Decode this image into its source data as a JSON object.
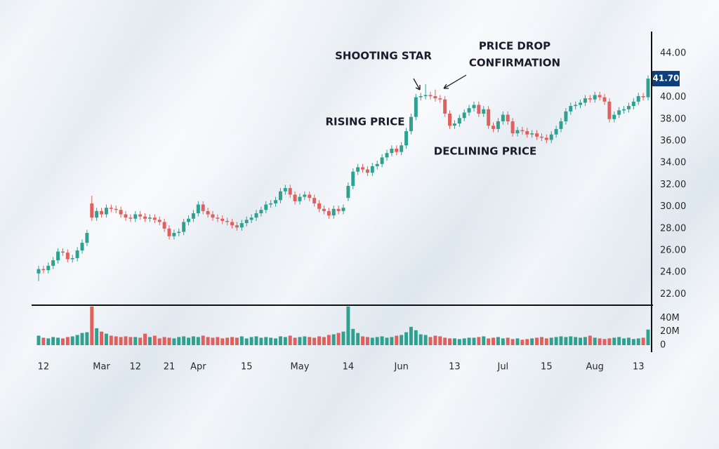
{
  "chart_data": {
    "type": "candlestick",
    "annotations": [
      "SHOOTING STAR",
      "PRICE DROP",
      "CONFIRMATION",
      "RISING PRICE",
      "DECLINING PRICE"
    ],
    "up_color": "#2fa190",
    "down_color": "#e0605e",
    "categories": [
      null,
      "12",
      null,
      null,
      null,
      null,
      null,
      null,
      null,
      null,
      null,
      null,
      null,
      "Mar",
      null,
      null,
      null,
      null,
      null,
      null,
      "12",
      null,
      null,
      null,
      null,
      null,
      null,
      "21",
      null,
      null,
      null,
      null,
      null,
      "Apr",
      null,
      null,
      null,
      null,
      null,
      null,
      null,
      null,
      null,
      "15",
      null,
      null,
      null,
      null,
      null,
      null,
      null,
      null,
      null,
      null,
      "May",
      null,
      null,
      null,
      null,
      null,
      null,
      null,
      null,
      null,
      "14",
      null,
      null,
      null,
      null,
      null,
      null,
      null,
      null,
      null,
      null,
      "Jun",
      null,
      null,
      null,
      null,
      null,
      null,
      null,
      null,
      null,
      null,
      "13",
      null,
      null,
      null,
      null,
      null,
      null,
      null,
      null,
      null,
      "Jul",
      null,
      null,
      null,
      null,
      null,
      null,
      null,
      null,
      "15",
      null,
      null,
      null,
      null,
      null,
      null,
      null,
      null,
      null,
      "Aug",
      null,
      null,
      null,
      null,
      null,
      null,
      null,
      null,
      "13",
      null,
      null
    ],
    "open": [
      23.9,
      24.3,
      24.2,
      24.6,
      25.1,
      25.9,
      25.8,
      25.2,
      25.3,
      26.0,
      26.7,
      30.3,
      29.0,
      29.6,
      29.3,
      29.9,
      29.8,
      29.7,
      29.3,
      29.0,
      28.9,
      29.3,
      29.1,
      28.9,
      29.0,
      28.8,
      28.6,
      28.0,
      27.3,
      27.6,
      27.7,
      28.6,
      28.9,
      29.4,
      30.2,
      29.6,
      29.3,
      29.0,
      28.9,
      28.7,
      28.6,
      28.3,
      28.1,
      28.5,
      28.8,
      29.0,
      29.4,
      29.7,
      30.2,
      30.3,
      30.6,
      31.4,
      31.7,
      31.1,
      30.5,
      30.9,
      31.1,
      30.8,
      30.3,
      29.8,
      29.6,
      29.2,
      29.8,
      29.6,
      30.8,
      31.9,
      33.2,
      33.6,
      33.4,
      33.1,
      33.7,
      33.9,
      34.5,
      34.9,
      35.3,
      35.0,
      35.6,
      36.9,
      38.2,
      40.0,
      40.1,
      40.2,
      40.1,
      39.9,
      39.8,
      38.5,
      37.4,
      37.6,
      38.1,
      38.6,
      39.0,
      39.3,
      38.5,
      38.9,
      37.4,
      37.1,
      37.8,
      38.4,
      37.8,
      36.7,
      37.0,
      36.9,
      36.6,
      36.7,
      36.4,
      36.3,
      36.1,
      36.6,
      37.1,
      37.8,
      38.7,
      39.2,
      39.3,
      39.5,
      39.9,
      39.8,
      40.2,
      40.0,
      39.6,
      38.0,
      38.4,
      38.8,
      38.9,
      39.2,
      39.6,
      40.1,
      40.0
    ],
    "high": [
      24.6,
      24.6,
      24.9,
      25.4,
      26.2,
      26.2,
      26.1,
      25.6,
      26.3,
      27.0,
      27.9,
      31.0,
      29.9,
      29.9,
      30.2,
      30.2,
      30.1,
      30.0,
      29.6,
      29.3,
      29.6,
      29.6,
      29.4,
      29.3,
      29.3,
      29.1,
      28.9,
      28.3,
      27.9,
      28.0,
      28.9,
      29.2,
      29.7,
      30.5,
      30.5,
      29.9,
      29.6,
      29.3,
      29.2,
      29.0,
      28.9,
      28.6,
      28.8,
      29.1,
      29.3,
      29.7,
      30.0,
      30.5,
      30.6,
      30.9,
      31.7,
      32.0,
      32.0,
      31.4,
      31.2,
      31.4,
      31.4,
      31.1,
      30.6,
      30.1,
      29.9,
      30.1,
      30.1,
      30.2,
      32.2,
      33.5,
      33.9,
      33.9,
      33.7,
      34.0,
      34.2,
      34.8,
      35.2,
      35.6,
      35.6,
      35.9,
      37.2,
      38.5,
      40.3,
      40.4,
      41.2,
      40.5,
      40.7,
      40.2,
      40.1,
      38.8,
      37.9,
      38.4,
      38.9,
      39.3,
      39.6,
      39.6,
      39.2,
      39.2,
      37.7,
      38.1,
      38.7,
      38.7,
      38.1,
      37.3,
      37.3,
      37.2,
      37.0,
      37.0,
      36.7,
      36.6,
      36.9,
      37.4,
      38.1,
      39.0,
      39.5,
      39.6,
      39.8,
      40.2,
      40.2,
      40.5,
      40.5,
      40.3,
      39.9,
      38.7,
      39.1,
      39.2,
      39.5,
      39.9,
      40.4,
      40.4,
      42.0
    ],
    "low": [
      23.2,
      23.9,
      23.9,
      24.3,
      24.8,
      25.5,
      24.9,
      24.9,
      25.0,
      25.7,
      26.4,
      28.7,
      28.7,
      29.0,
      29.0,
      29.5,
      29.4,
      29.0,
      28.7,
      28.6,
      28.6,
      28.8,
      28.6,
      28.6,
      28.5,
      28.3,
      27.7,
      27.0,
      27.0,
      27.3,
      27.4,
      28.3,
      28.6,
      29.1,
      29.3,
      29.0,
      28.7,
      28.6,
      28.4,
      28.3,
      28.0,
      27.8,
      27.8,
      28.2,
      28.5,
      28.7,
      29.1,
      29.4,
      29.9,
      30.0,
      30.3,
      31.1,
      30.8,
      30.2,
      30.2,
      30.6,
      30.5,
      30.0,
      29.5,
      29.3,
      28.9,
      28.9,
      29.3,
      29.3,
      30.5,
      31.6,
      32.9,
      33.1,
      32.8,
      32.8,
      33.4,
      33.6,
      34.2,
      34.6,
      34.7,
      34.7,
      35.3,
      36.6,
      37.9,
      39.7,
      39.8,
      39.8,
      39.6,
      39.5,
      38.2,
      37.1,
      37.1,
      37.3,
      37.8,
      38.3,
      38.7,
      38.2,
      38.2,
      37.1,
      36.8,
      36.8,
      37.5,
      37.5,
      36.4,
      36.4,
      36.6,
      36.3,
      36.3,
      36.1,
      36.0,
      35.8,
      35.8,
      36.3,
      36.8,
      37.5,
      38.4,
      38.9,
      39.0,
      39.2,
      39.5,
      39.5,
      39.7,
      39.3,
      37.7,
      37.7,
      38.1,
      38.5,
      38.6,
      38.9,
      39.3,
      39.7,
      39.7
    ],
    "close": [
      24.3,
      24.2,
      24.6,
      25.1,
      25.9,
      25.8,
      25.2,
      25.3,
      26.0,
      26.7,
      27.6,
      29.0,
      29.6,
      29.3,
      29.9,
      29.8,
      29.7,
      29.3,
      29.0,
      28.9,
      29.3,
      29.1,
      28.9,
      29.0,
      28.8,
      28.6,
      28.0,
      27.3,
      27.6,
      27.7,
      28.6,
      28.9,
      29.4,
      30.2,
      29.6,
      29.3,
      29.0,
      28.9,
      28.7,
      28.6,
      28.3,
      28.1,
      28.5,
      28.8,
      29.0,
      29.4,
      29.7,
      30.2,
      30.3,
      30.6,
      31.4,
      31.7,
      31.1,
      30.5,
      30.9,
      31.1,
      30.8,
      30.3,
      29.8,
      29.6,
      29.2,
      29.8,
      29.6,
      29.9,
      31.9,
      33.2,
      33.6,
      33.4,
      33.1,
      33.7,
      33.9,
      34.5,
      34.9,
      35.3,
      35.0,
      35.6,
      36.9,
      38.2,
      40.0,
      40.1,
      40.2,
      40.1,
      39.9,
      39.8,
      38.5,
      37.4,
      37.6,
      38.1,
      38.6,
      39.0,
      39.3,
      38.5,
      38.9,
      37.4,
      37.1,
      37.8,
      38.4,
      37.8,
      36.7,
      37.0,
      36.9,
      36.6,
      36.7,
      36.4,
      36.3,
      36.1,
      36.6,
      37.1,
      37.8,
      38.7,
      39.2,
      39.3,
      39.5,
      39.9,
      39.8,
      40.2,
      40.0,
      39.6,
      38.0,
      38.4,
      38.8,
      38.9,
      39.2,
      39.6,
      40.1,
      40.0,
      41.7
    ],
    "volume": [
      14000000,
      11000000,
      10000000,
      12000000,
      11000000,
      10000000,
      12000000,
      13000000,
      15000000,
      18000000,
      19000000,
      57000000,
      25000000,
      20000000,
      17000000,
      14000000,
      13000000,
      12000000,
      13000000,
      12000000,
      12000000,
      11000000,
      17000000,
      12000000,
      14000000,
      10000000,
      12000000,
      11000000,
      10000000,
      12000000,
      13000000,
      11000000,
      13000000,
      12000000,
      14000000,
      12000000,
      11000000,
      12000000,
      10000000,
      11000000,
      12000000,
      11000000,
      13000000,
      10000000,
      12000000,
      13000000,
      11000000,
      12000000,
      11000000,
      10000000,
      13000000,
      12000000,
      14000000,
      11000000,
      12000000,
      13000000,
      12000000,
      11000000,
      13000000,
      12000000,
      15000000,
      16000000,
      18000000,
      20000000,
      57000000,
      24000000,
      18000000,
      13000000,
      12000000,
      11000000,
      12000000,
      13000000,
      11000000,
      12000000,
      14000000,
      15000000,
      19000000,
      27000000,
      22000000,
      16000000,
      15000000,
      12000000,
      14000000,
      13000000,
      11000000,
      10000000,
      10000000,
      9000000,
      10000000,
      11000000,
      11000000,
      12000000,
      13000000,
      10000000,
      11000000,
      12000000,
      10000000,
      11000000,
      9000000,
      10000000,
      8000000,
      9000000,
      10000000,
      11000000,
      12000000,
      10000000,
      11000000,
      12000000,
      13000000,
      12000000,
      13000000,
      12000000,
      11000000,
      12000000,
      14000000,
      11000000,
      10000000,
      9000000,
      10000000,
      11000000,
      12000000,
      10000000,
      11000000,
      9000000,
      10000000,
      11000000,
      23000000
    ],
    "ylim": [
      21,
      46
    ],
    "yticks": [
      {
        "value": 44,
        "label": "44.00"
      },
      {
        "value": 40,
        "label": "40.00"
      },
      {
        "value": 38,
        "label": "38.00"
      },
      {
        "value": 36,
        "label": "36.00"
      },
      {
        "value": 34,
        "label": "34.00"
      },
      {
        "value": 32,
        "label": "32.00"
      },
      {
        "value": 30,
        "label": "30.00"
      },
      {
        "value": 28,
        "label": "28.00"
      },
      {
        "value": 26,
        "label": "26.00"
      },
      {
        "value": 24,
        "label": "24.00"
      },
      {
        "value": 22,
        "label": "22.00"
      }
    ],
    "y2lim": [
      0,
      60000000
    ],
    "y2ticks": [
      {
        "value": 40000000,
        "label": "40M"
      },
      {
        "value": 20000000,
        "label": "20M"
      },
      0
    ],
    "last_price": {
      "value": 41.7,
      "label": "41.70"
    },
    "last_price_color": "#0d3f7c",
    "grid": false
  }
}
